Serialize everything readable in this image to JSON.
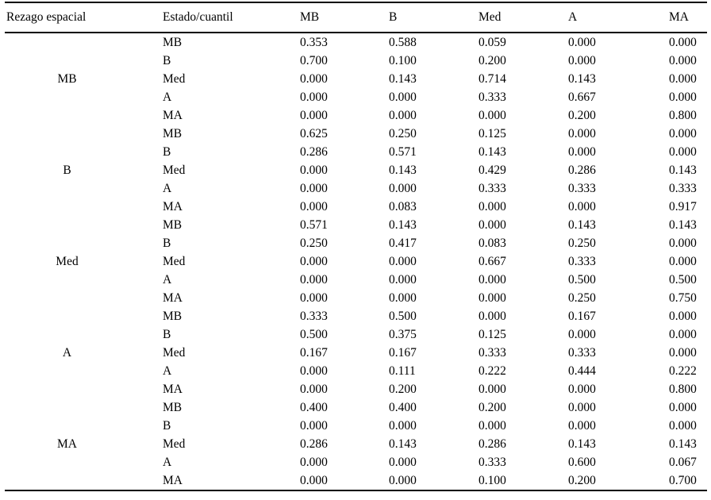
{
  "table": {
    "column_headers": [
      "Rezago espacial",
      "Estado/cuantil",
      "MB",
      "B",
      "Med",
      "A",
      "MA"
    ],
    "groups": [
      {
        "label": "MB",
        "rows": [
          {
            "estado": "MB",
            "values": [
              "0.353",
              "0.588",
              "0.059",
              "0.000",
              "0.000"
            ]
          },
          {
            "estado": "B",
            "values": [
              "0.700",
              "0.100",
              "0.200",
              "0.000",
              "0.000"
            ]
          },
          {
            "estado": "Med",
            "values": [
              "0.000",
              "0.143",
              "0.714",
              "0.143",
              "0.000"
            ]
          },
          {
            "estado": "A",
            "values": [
              "0.000",
              "0.000",
              "0.333",
              "0.667",
              "0.000"
            ]
          },
          {
            "estado": "MA",
            "values": [
              "0.000",
              "0.000",
              "0.000",
              "0.200",
              "0.800"
            ]
          }
        ]
      },
      {
        "label": "B",
        "rows": [
          {
            "estado": "MB",
            "values": [
              "0.625",
              "0.250",
              "0.125",
              "0.000",
              "0.000"
            ]
          },
          {
            "estado": "B",
            "values": [
              "0.286",
              "0.571",
              "0.143",
              "0.000",
              "0.000"
            ]
          },
          {
            "estado": "Med",
            "values": [
              "0.000",
              "0.143",
              "0.429",
              "0.286",
              "0.143"
            ]
          },
          {
            "estado": "A",
            "values": [
              "0.000",
              "0.000",
              "0.333",
              "0.333",
              "0.333"
            ]
          },
          {
            "estado": "MA",
            "values": [
              "0.000",
              "0.083",
              "0.000",
              "0.000",
              "0.917"
            ]
          }
        ]
      },
      {
        "label": "Med",
        "rows": [
          {
            "estado": "MB",
            "values": [
              "0.571",
              "0.143",
              "0.000",
              "0.143",
              "0.143"
            ]
          },
          {
            "estado": "B",
            "values": [
              "0.250",
              "0.417",
              "0.083",
              "0.250",
              "0.000"
            ]
          },
          {
            "estado": "Med",
            "values": [
              "0.000",
              "0.000",
              "0.667",
              "0.333",
              "0.000"
            ]
          },
          {
            "estado": "A",
            "values": [
              "0.000",
              "0.000",
              "0.000",
              "0.500",
              "0.500"
            ]
          },
          {
            "estado": "MA",
            "values": [
              "0.000",
              "0.000",
              "0.000",
              "0.250",
              "0.750"
            ]
          }
        ]
      },
      {
        "label": "A",
        "rows": [
          {
            "estado": "MB",
            "values": [
              "0.333",
              "0.500",
              "0.000",
              "0.167",
              "0.000"
            ]
          },
          {
            "estado": "B",
            "values": [
              "0.500",
              "0.375",
              "0.125",
              "0.000",
              "0.000"
            ]
          },
          {
            "estado": "Med",
            "values": [
              "0.167",
              "0.167",
              "0.333",
              "0.333",
              "0.000"
            ]
          },
          {
            "estado": "A",
            "values": [
              "0.000",
              "0.111",
              "0.222",
              "0.444",
              "0.222"
            ]
          },
          {
            "estado": "MA",
            "values": [
              "0.000",
              "0.200",
              "0.000",
              "0.000",
              "0.800"
            ]
          }
        ]
      },
      {
        "label": "MA",
        "rows": [
          {
            "estado": "MB",
            "values": [
              "0.400",
              "0.400",
              "0.200",
              "0.000",
              "0.000"
            ]
          },
          {
            "estado": "B",
            "values": [
              "0.000",
              "0.000",
              "0.000",
              "0.000",
              "0.000"
            ]
          },
          {
            "estado": "Med",
            "values": [
              "0.286",
              "0.143",
              "0.286",
              "0.143",
              "0.143"
            ]
          },
          {
            "estado": "A",
            "values": [
              "0.000",
              "0.000",
              "0.333",
              "0.600",
              "0.067"
            ]
          },
          {
            "estado": "MA",
            "values": [
              "0.000",
              "0.000",
              "0.100",
              "0.200",
              "0.700"
            ]
          }
        ]
      }
    ]
  },
  "chart_data": {
    "type": "table",
    "title": "",
    "row_group_header": "Rezago espacial",
    "row_header": "Estado/cuantil",
    "column_categories": [
      "MB",
      "B",
      "Med",
      "A",
      "MA"
    ],
    "row_groups": [
      "MB",
      "B",
      "Med",
      "A",
      "MA"
    ],
    "matrix": {
      "MB": {
        "MB": [
          0.353,
          0.588,
          0.059,
          0.0,
          0.0
        ],
        "B": [
          0.7,
          0.1,
          0.2,
          0.0,
          0.0
        ],
        "Med": [
          0.0,
          0.143,
          0.714,
          0.143,
          0.0
        ],
        "A": [
          0.0,
          0.0,
          0.333,
          0.667,
          0.0
        ],
        "MA": [
          0.0,
          0.0,
          0.0,
          0.2,
          0.8
        ]
      },
      "B": {
        "MB": [
          0.625,
          0.25,
          0.125,
          0.0,
          0.0
        ],
        "B": [
          0.286,
          0.571,
          0.143,
          0.0,
          0.0
        ],
        "Med": [
          0.0,
          0.143,
          0.429,
          0.286,
          0.143
        ],
        "A": [
          0.0,
          0.0,
          0.333,
          0.333,
          0.333
        ],
        "MA": [
          0.0,
          0.083,
          0.0,
          0.0,
          0.917
        ]
      },
      "Med": {
        "MB": [
          0.571,
          0.143,
          0.0,
          0.143,
          0.143
        ],
        "B": [
          0.25,
          0.417,
          0.083,
          0.25,
          0.0
        ],
        "Med": [
          0.0,
          0.0,
          0.667,
          0.333,
          0.0
        ],
        "A": [
          0.0,
          0.0,
          0.0,
          0.5,
          0.5
        ],
        "MA": [
          0.0,
          0.0,
          0.0,
          0.25,
          0.75
        ]
      },
      "A": {
        "MB": [
          0.333,
          0.5,
          0.0,
          0.167,
          0.0
        ],
        "B": [
          0.5,
          0.375,
          0.125,
          0.0,
          0.0
        ],
        "Med": [
          0.167,
          0.167,
          0.333,
          0.333,
          0.0
        ],
        "A": [
          0.0,
          0.111,
          0.222,
          0.444,
          0.222
        ],
        "MA": [
          0.0,
          0.2,
          0.0,
          0.0,
          0.8
        ]
      },
      "MA": {
        "MB": [
          0.4,
          0.4,
          0.2,
          0.0,
          0.0
        ],
        "B": [
          0.0,
          0.0,
          0.0,
          0.0,
          0.0
        ],
        "Med": [
          0.286,
          0.143,
          0.286,
          0.143,
          0.143
        ],
        "A": [
          0.0,
          0.0,
          0.333,
          0.6,
          0.067
        ],
        "MA": [
          0.0,
          0.0,
          0.1,
          0.2,
          0.7
        ]
      }
    }
  },
  "colors": {
    "text": "#000000",
    "background": "#ffffff",
    "rule": "#000000"
  }
}
